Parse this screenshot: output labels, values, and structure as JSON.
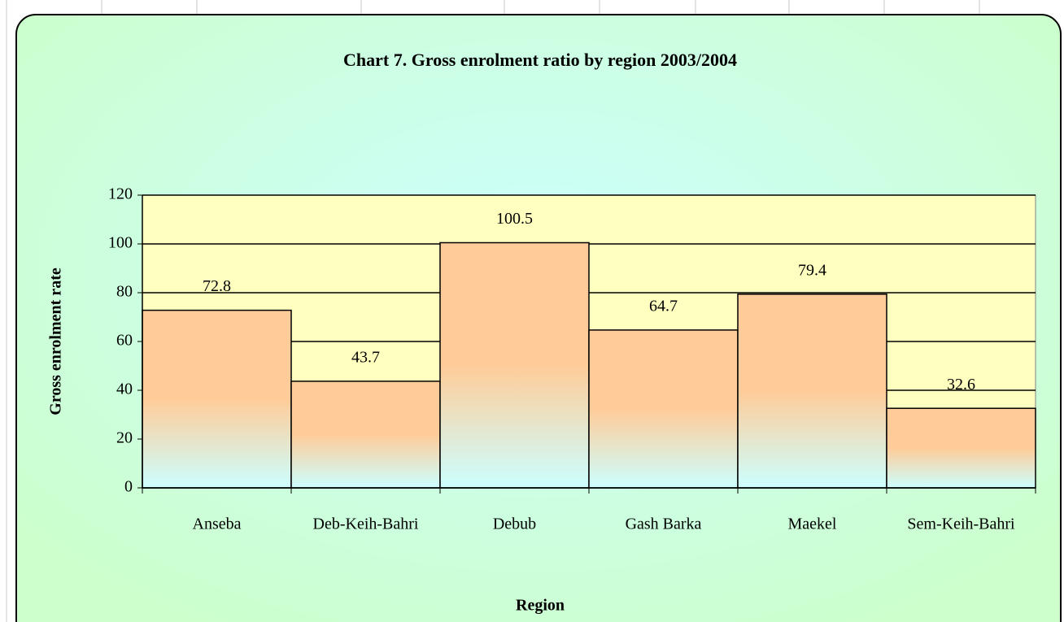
{
  "chart_data": {
    "type": "bar",
    "title": "Chart 7. Gross enrolment ratio by region 2003/2004",
    "x_label": "Region",
    "y_label": "Gross enrolment rate",
    "categories": [
      "Anseba",
      "Deb-Keih-Bahri",
      "Debub",
      "Gash Barka",
      "Maekel",
      "Sem-Keih-Bahri"
    ],
    "values": [
      72.8,
      43.7,
      100.5,
      64.7,
      79.4,
      32.6
    ],
    "ylim": [
      0,
      120
    ],
    "yticks": [
      0,
      20,
      40,
      60,
      80,
      100,
      120
    ],
    "grid": true
  }
}
